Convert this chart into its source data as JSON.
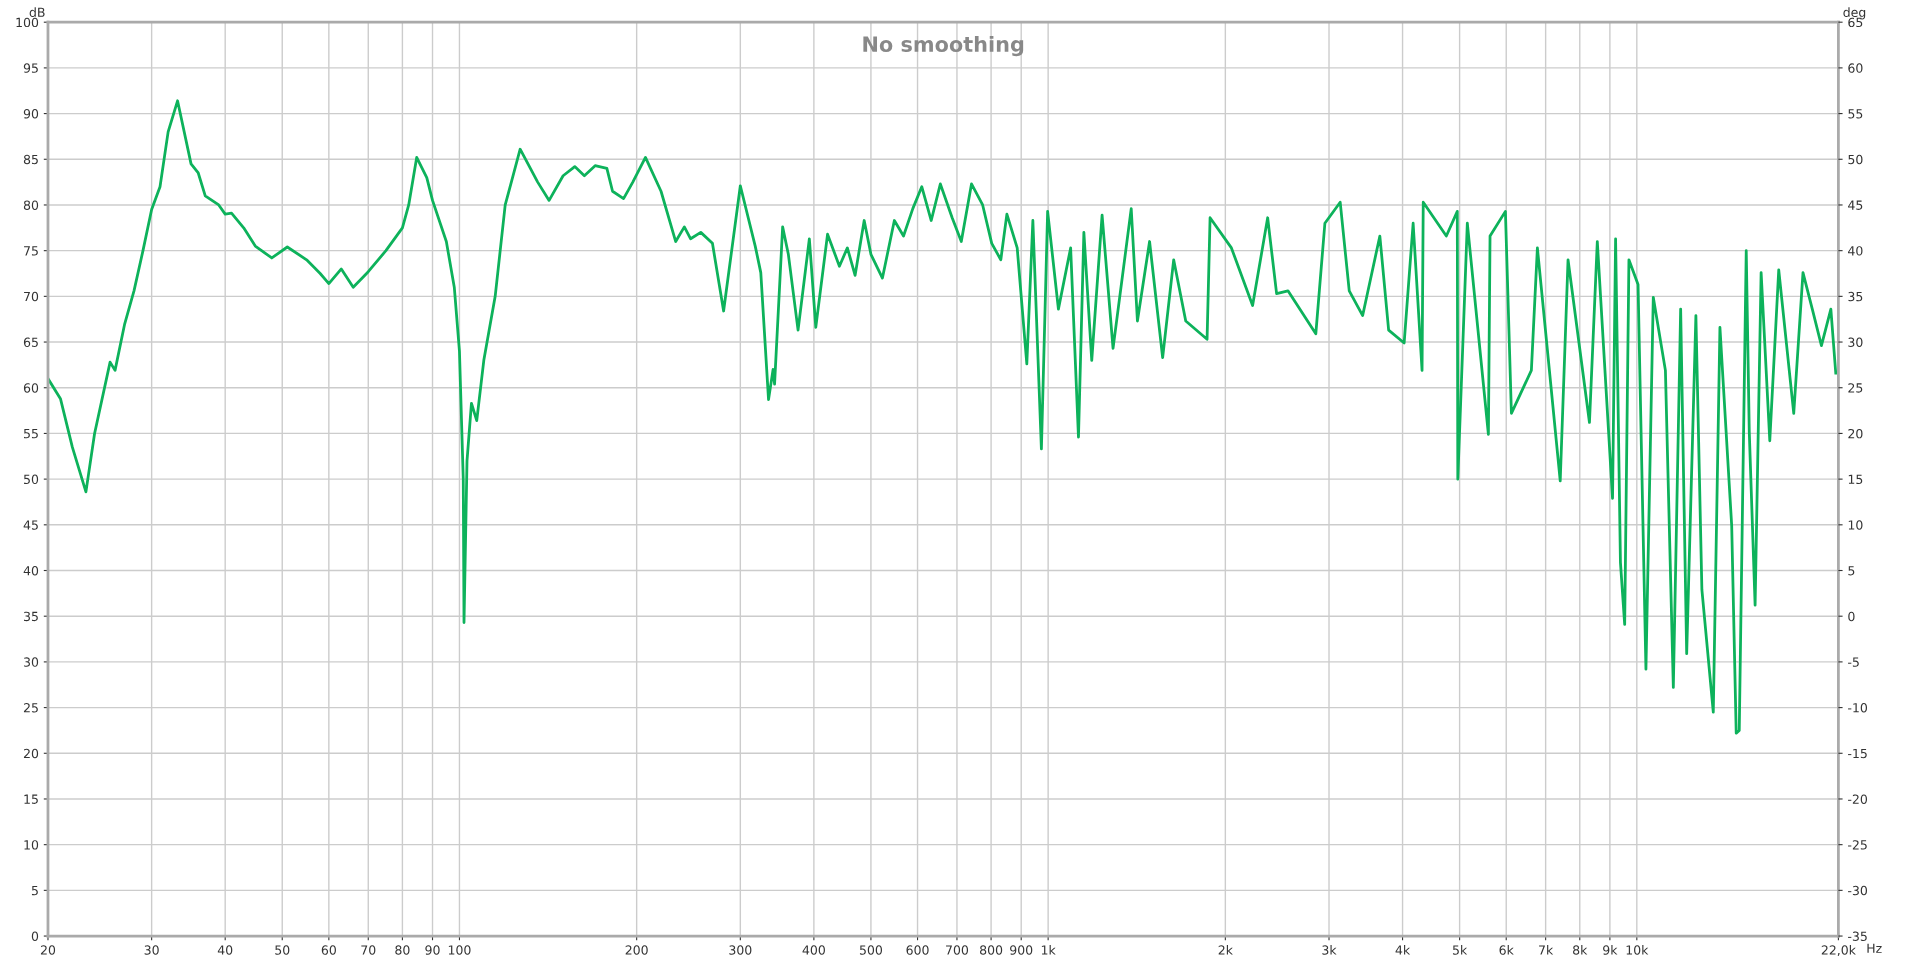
{
  "chart_data": {
    "type": "line",
    "title": "No smoothing",
    "xlabel": "Hz",
    "ylabel": "dB",
    "y2label": "deg",
    "log": "x",
    "grid": true,
    "marker": "none",
    "line_style": "solid",
    "xlim": [
      20,
      22000
    ],
    "xticks": [
      20,
      30,
      40,
      50,
      60,
      70,
      80,
      90,
      100,
      200,
      300,
      400,
      500,
      600,
      700,
      800,
      900,
      {
        "value": 1000,
        "label": "1k"
      },
      {
        "value": 2000,
        "label": "2k"
      },
      {
        "value": 3000,
        "label": "3k"
      },
      {
        "value": 4000,
        "label": "4k"
      },
      {
        "value": 5000,
        "label": "5k"
      },
      {
        "value": 6000,
        "label": "6k"
      },
      {
        "value": 7000,
        "label": "7k"
      },
      {
        "value": 8000,
        "label": "8k"
      },
      {
        "value": 9000,
        "label": "9k"
      },
      {
        "value": 10000,
        "label": "10k"
      },
      {
        "value": 22000,
        "label": "22,0k"
      }
    ],
    "ylim": [
      0,
      100
    ],
    "yticks": [
      0,
      5,
      10,
      15,
      20,
      25,
      30,
      35,
      40,
      45,
      50,
      55,
      60,
      65,
      70,
      75,
      80,
      85,
      90,
      95,
      100
    ],
    "y2lim": [
      -35,
      65
    ],
    "y2ticks": [
      -35,
      -30,
      -25,
      -20,
      -15,
      -10,
      -5,
      0,
      5,
      10,
      15,
      20,
      25,
      30,
      35,
      40,
      45,
      50,
      55,
      60,
      65
    ],
    "series": [
      {
        "color": "#0db25b",
        "x": [
          20,
          21,
          22,
          23.2,
          24,
          25.5,
          26,
          27,
          28,
          29,
          30,
          31,
          32,
          33.2,
          35,
          36,
          37,
          39,
          40,
          41,
          43,
          45,
          48,
          51,
          55,
          58,
          60,
          63,
          66,
          70,
          75,
          80,
          82,
          84.6,
          88,
          90,
          95,
          98,
          100,
          101.5,
          101.8,
          103,
          104.8,
          107,
          110,
          115,
          119.6,
          126.8,
          135.8,
          142,
          150,
          157,
          163,
          170,
          178,
          182,
          190,
          197,
          207,
          220,
          233,
          241,
          247,
          257,
          269,
          281,
          300,
          318,
          325,
          335,
          341,
          343,
          354,
          362,
          376,
          393,
          403,
          422,
          442,
          456,
          470,
          487,
          500,
          523,
          548,
          568,
          589,
          610,
          633,
          656,
          687,
          712,
          741,
          774,
          802,
          831,
          851,
          886,
          920,
          942,
          974,
          998,
          1041,
          1092,
          1126,
          1150,
          1186,
          1235,
          1289,
          1384,
          1418,
          1487,
          1565,
          1634,
          1713,
          1862,
          1884,
          2048,
          2225,
          2360,
          2444,
          2555,
          2849,
          2952,
          3134,
          3247,
          3422,
          3660,
          3788,
          4025,
          4169,
          4317,
          4337,
          4747,
          4955,
          4965,
          5153,
          5596,
          5632,
          5981,
          6123,
          6620,
          6778,
          7411,
          7641,
          8309,
          8568,
          9094,
          9203,
          9379,
          9536,
          9696,
          10048,
          10363,
          10665,
          11183,
          11535,
          11870,
          12153,
          12599,
          12898,
          13486,
          13841,
          14493,
          14752,
          14928,
          15341,
          15524,
          15883,
          16261,
          16821,
          17421,
          18474,
          19154,
          19865,
          20587,
          21360,
          21774
        ],
        "values": [
          61,
          58.8,
          53.5,
          48.6,
          55,
          62.8,
          61.9,
          67,
          70.6,
          75,
          79.5,
          82,
          88,
          91.4,
          84.5,
          83.5,
          81,
          80,
          79,
          79.1,
          77.5,
          75.5,
          74.2,
          75.4,
          74,
          72.5,
          71.4,
          73,
          71,
          72.7,
          75,
          77.5,
          80,
          85.2,
          83,
          80.5,
          76,
          71,
          64,
          50,
          34.3,
          52,
          58.3,
          56.4,
          63,
          70,
          80,
          86.1,
          82.5,
          80.5,
          83.2,
          84.2,
          83.2,
          84.3,
          84,
          81.5,
          80.7,
          82.5,
          85.2,
          81.5,
          76,
          77.6,
          76.3,
          77,
          75.8,
          68.4,
          82.1,
          75.5,
          72.6,
          58.7,
          62,
          60.4,
          77.6,
          74.6,
          66.3,
          76.3,
          66.6,
          76.8,
          73.3,
          75.3,
          72.3,
          78.3,
          74.6,
          72,
          78.3,
          76.6,
          79.6,
          82,
          78.3,
          82.3,
          78.6,
          76,
          82.3,
          80,
          75.8,
          74,
          79,
          75.3,
          62.6,
          78.3,
          53.3,
          79.3,
          68.6,
          75.3,
          54.6,
          77,
          63,
          78.9,
          64.3,
          79.6,
          67.3,
          76,
          63.3,
          74,
          67.3,
          65.3,
          78.6,
          75.3,
          69,
          78.6,
          70.3,
          70.6,
          65.9,
          78,
          80.3,
          70.6,
          67.9,
          76.6,
          66.3,
          64.9,
          78,
          61.9,
          80.3,
          76.6,
          79.3,
          50,
          78,
          54.9,
          76.6,
          79.3,
          57.2,
          61.9,
          75.3,
          49.8,
          74,
          56.2,
          76,
          47.9,
          76.3,
          40.9,
          34.1,
          74,
          71.3,
          29.2,
          69.9,
          61.9,
          27.2,
          68.6,
          30.9,
          67.9,
          37.9,
          24.5,
          66.6,
          44.9,
          22.2,
          22.5,
          75,
          55.2,
          36.2,
          72.6,
          54.2,
          72.9,
          57.2,
          72.6,
          68.6,
          64.6,
          68.6,
          61.6
        ]
      }
    ]
  }
}
